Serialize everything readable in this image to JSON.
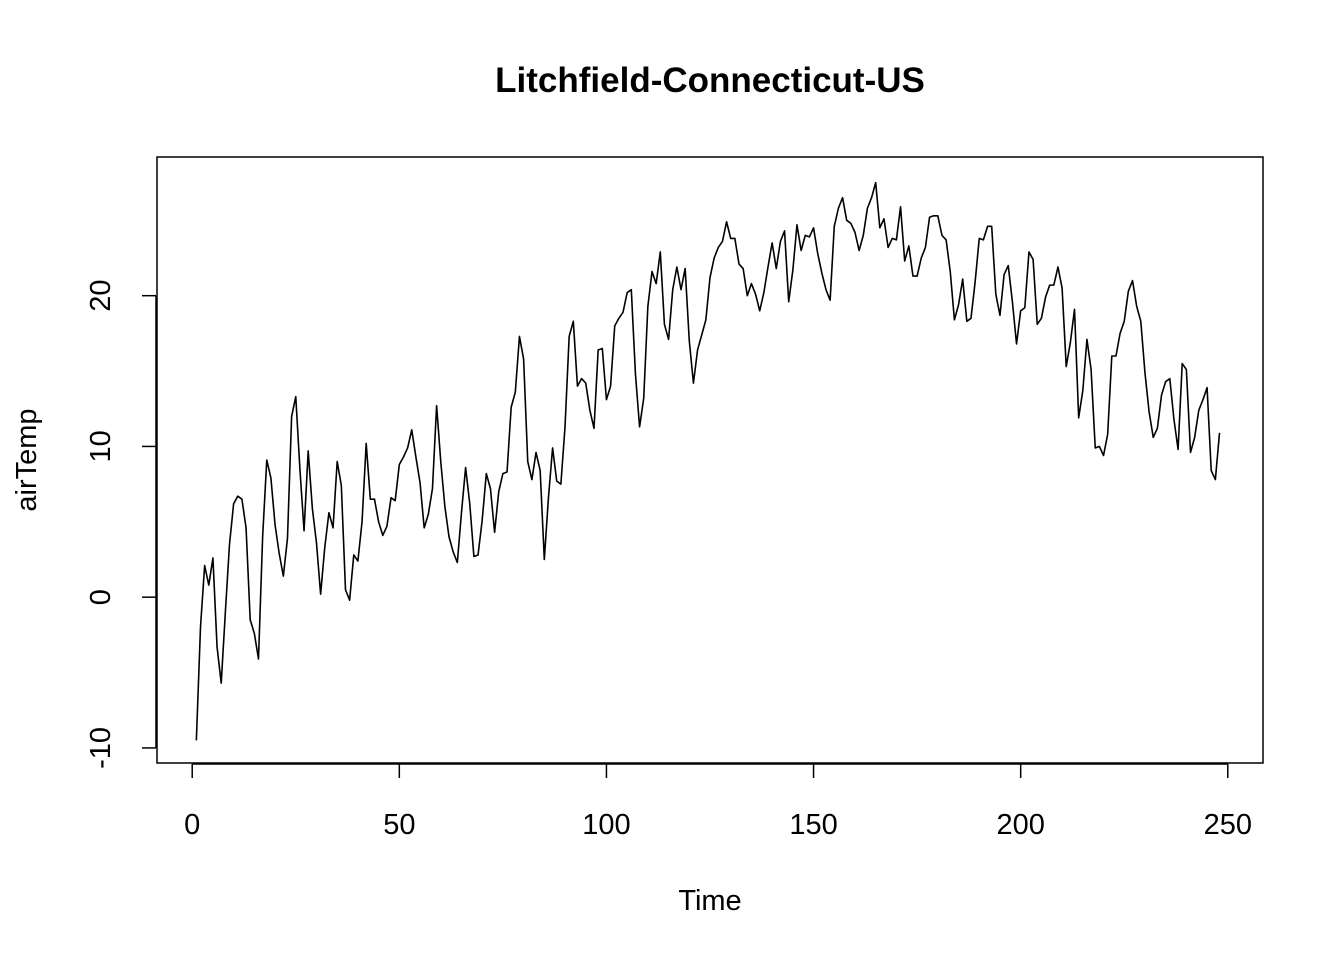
{
  "chart_data": {
    "type": "line",
    "title": "Litchfield-Connecticut-US",
    "xlabel": "Time",
    "ylabel": "airTemp",
    "xlim": [
      -8.5,
      258.5
    ],
    "ylim": [
      -11,
      29.2
    ],
    "xticks": [
      0,
      50,
      100,
      150,
      200,
      250
    ],
    "xtick_labels": [
      "0",
      "50",
      "100",
      "150",
      "200",
      "250"
    ],
    "yticks": [
      -10,
      0,
      10,
      20
    ],
    "ytick_labels": [
      "-10",
      "0",
      "10",
      "20"
    ],
    "grid": false,
    "colors": {
      "line": "#000000",
      "frame": "#000000",
      "background": "#ffffff"
    },
    "x_start": 1,
    "series": [
      {
        "values": [
          -9.5,
          -2.0,
          2.1,
          0.8,
          2.6,
          -3.3,
          -5.7,
          -1.0,
          3.5,
          6.2,
          6.7,
          6.5,
          4.6,
          -1.5,
          -2.4,
          -4.1,
          4.0,
          9.1,
          7.9,
          4.8,
          2.9,
          1.4,
          3.9,
          12.0,
          13.3,
          8.5,
          4.4,
          9.7,
          5.9,
          3.6,
          0.2,
          3.3,
          5.6,
          4.6,
          9.0,
          7.4,
          0.5,
          -0.2,
          2.8,
          2.4,
          5.0,
          10.2,
          6.5,
          6.5,
          5.0,
          4.1,
          4.7,
          6.6,
          6.4,
          8.8,
          9.3,
          9.9,
          11.1,
          9.3,
          7.6,
          4.6,
          5.5,
          7.2,
          12.7,
          9.0,
          6.0,
          4.0,
          3.0,
          2.3,
          5.6,
          8.6,
          6.2,
          2.7,
          2.8,
          5.1,
          8.2,
          7.2,
          4.3,
          7.0,
          8.2,
          8.3,
          12.6,
          13.6,
          17.3,
          15.8,
          9.0,
          7.8,
          9.6,
          8.4,
          2.5,
          6.6,
          9.9,
          7.7,
          7.5,
          11.3,
          17.3,
          18.3,
          14.0,
          14.5,
          14.2,
          12.4,
          11.2,
          16.4,
          16.5,
          13.1,
          14.0,
          18.0,
          18.5,
          18.9,
          20.2,
          20.4,
          14.8,
          11.3,
          13.2,
          19.3,
          21.6,
          20.8,
          22.9,
          18.1,
          17.1,
          20.4,
          21.9,
          20.4,
          21.8,
          17.0,
          14.2,
          16.4,
          17.4,
          18.4,
          21.2,
          22.5,
          23.2,
          23.6,
          24.9,
          23.8,
          23.8,
          22.1,
          21.8,
          20.0,
          20.8,
          20.1,
          19.0,
          20.2,
          21.9,
          23.5,
          21.8,
          23.6,
          24.3,
          19.6,
          21.7,
          24.7,
          23.0,
          24.0,
          23.9,
          24.5,
          22.8,
          21.5,
          20.4,
          19.7,
          24.6,
          25.8,
          26.5,
          25.0,
          24.8,
          24.2,
          23.0,
          24.0,
          25.8,
          26.5,
          27.5,
          24.5,
          25.1,
          23.2,
          23.8,
          23.7,
          25.9,
          22.3,
          23.3,
          21.3,
          21.3,
          22.5,
          23.2,
          25.2,
          25.3,
          25.3,
          24.0,
          23.7,
          21.6,
          18.4,
          19.4,
          21.1,
          18.3,
          18.5,
          20.9,
          23.8,
          23.7,
          24.6,
          24.6,
          20.1,
          18.7,
          21.4,
          22.0,
          19.6,
          16.8,
          19.0,
          19.2,
          22.9,
          22.4,
          18.1,
          18.5,
          19.9,
          20.7,
          20.7,
          21.9,
          20.5,
          15.3,
          16.9,
          19.1,
          11.9,
          13.7,
          17.1,
          15.1,
          9.9,
          10.0,
          9.4,
          10.8,
          16.0,
          16.0,
          17.5,
          18.3,
          20.3,
          21.0,
          19.3,
          18.3,
          14.9,
          12.3,
          10.6,
          11.2,
          13.4,
          14.3,
          14.5,
          11.8,
          9.8,
          15.5,
          15.1,
          9.6,
          10.6,
          12.4,
          13.1,
          13.9,
          8.4,
          7.8,
          10.9
        ]
      }
    ]
  }
}
